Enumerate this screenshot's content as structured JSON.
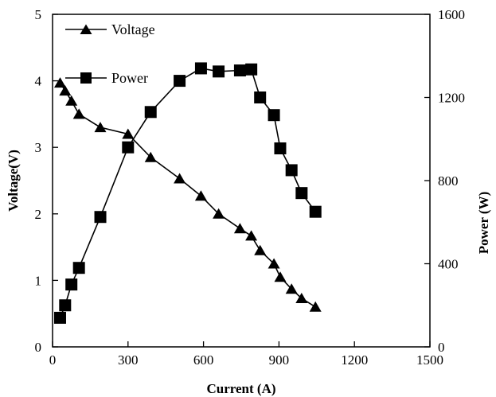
{
  "chart_data": {
    "type": "line",
    "xlabel": "Current (A)",
    "ylabel": "Voltage(V)",
    "y2label": "Power (W)",
    "xlim": [
      0,
      1500
    ],
    "ylim": [
      0,
      5
    ],
    "y2lim": [
      0,
      1600
    ],
    "x_ticks": [
      "0",
      "300",
      "600",
      "900",
      "1200",
      "1500"
    ],
    "y_ticks": [
      "0",
      "1",
      "2",
      "3",
      "4",
      "5"
    ],
    "y2_ticks": [
      "0",
      "400",
      "800",
      "1200",
      "1600"
    ],
    "grid": false,
    "legend_position": "top-left",
    "series": [
      {
        "name": "Voltage",
        "axis": "left",
        "marker": "triangle",
        "color": "#000000",
        "x": [
          30,
          50,
          75,
          105,
          190,
          300,
          390,
          505,
          590,
          660,
          745,
          790,
          825,
          880,
          905,
          950,
          990,
          1045
        ],
        "values": [
          3.97,
          3.85,
          3.7,
          3.5,
          3.3,
          3.2,
          2.85,
          2.53,
          2.27,
          2.0,
          1.78,
          1.67,
          1.45,
          1.25,
          1.05,
          0.87,
          0.73,
          0.6
        ]
      },
      {
        "name": "Power",
        "axis": "right",
        "marker": "square",
        "color": "#000000",
        "x": [
          30,
          50,
          75,
          105,
          190,
          300,
          390,
          505,
          590,
          660,
          745,
          790,
          825,
          880,
          905,
          950,
          990,
          1045
        ],
        "values": [
          140,
          200,
          300,
          380,
          625,
          960,
          1130,
          1280,
          1340,
          1325,
          1330,
          1335,
          1200,
          1115,
          955,
          850,
          740,
          650
        ]
      }
    ]
  }
}
